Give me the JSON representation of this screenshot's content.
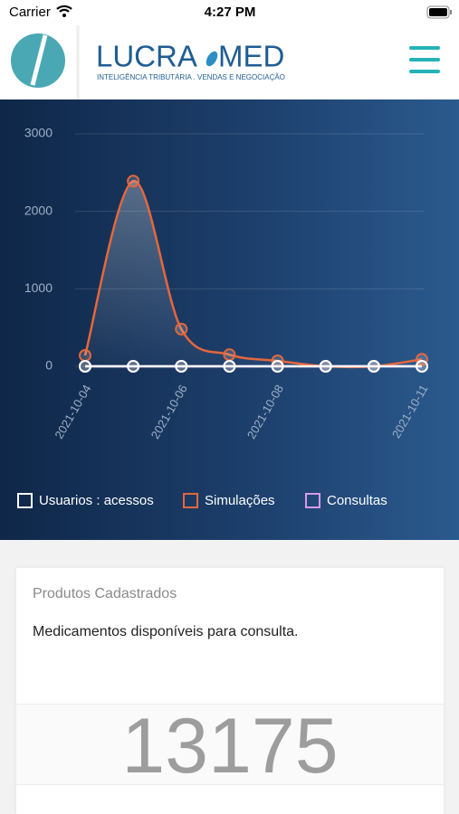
{
  "status_bar": {
    "carrier": "Carrier",
    "time": "4:27 PM"
  },
  "header": {
    "brand_left": "LUCRA",
    "brand_right": "MED",
    "tagline": "INTELIGÊNCIA TRIBUTÁRIA . VENDAS E NEGOCIAÇÃO"
  },
  "chart_data": {
    "type": "line",
    "categories": [
      "2021-10-04",
      null,
      "2021-10-06",
      null,
      "2021-10-08",
      null,
      null,
      "2021-10-11"
    ],
    "series": [
      {
        "name": "Usuarios : acessos",
        "color": "#ffffff",
        "values": [
          0,
          0,
          0,
          0,
          0,
          0,
          0,
          0
        ]
      },
      {
        "name": "Simulações",
        "color": "#e5673c",
        "values": [
          140,
          2390,
          480,
          150,
          70,
          0,
          0,
          90
        ]
      },
      {
        "name": "Consultas",
        "color": "#d79ae8",
        "values": [
          0,
          0,
          0,
          0,
          0,
          0,
          0,
          0
        ]
      }
    ],
    "ylim": [
      0,
      3000
    ],
    "yticks": [
      0,
      1000,
      2000,
      3000
    ],
    "grid": true,
    "legend": "bottom"
  },
  "card": {
    "title": "Produtos Cadastrados",
    "description": "Medicamentos disponíveis para consulta.",
    "count": 13175
  }
}
